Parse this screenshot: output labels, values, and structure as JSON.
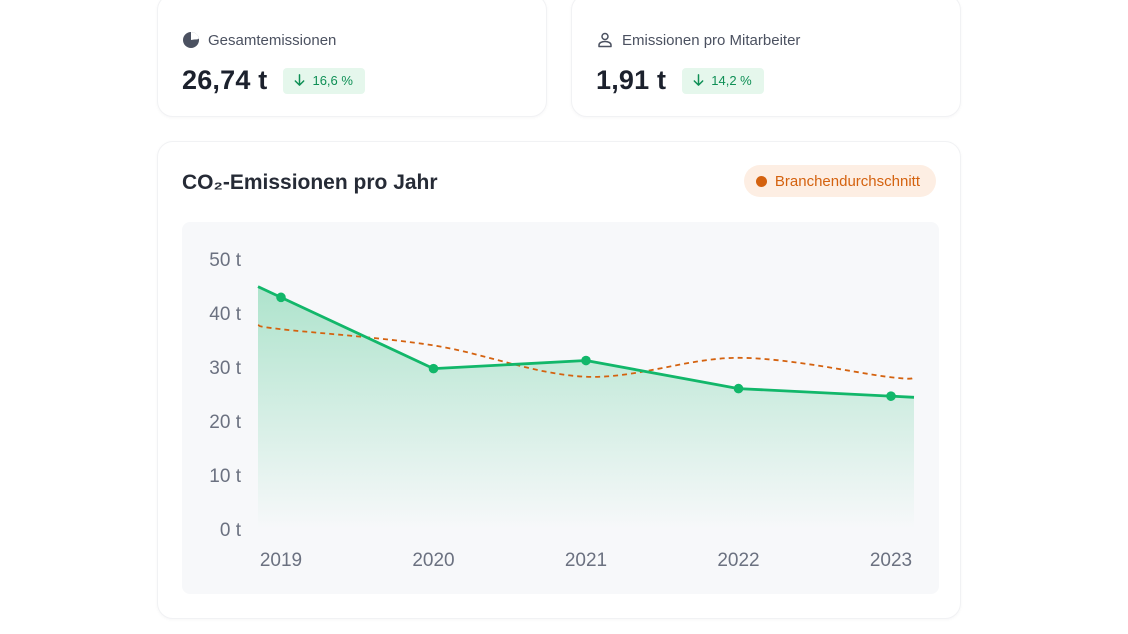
{
  "kpis": {
    "total": {
      "label": "Gesamtemissionen",
      "value": "26,74 t",
      "delta": "16,6 %",
      "icon": "pie-chart-icon"
    },
    "per_employee": {
      "label": "Emissionen pro Mitarbeiter",
      "value": "1,91 t",
      "delta": "14,2 %",
      "icon": "user-icon"
    }
  },
  "chart": {
    "title": "CO₂-Emissionen pro Jahr",
    "legend_label": "Branchendurchschnitt"
  },
  "colors": {
    "emissions": "#12b76a",
    "industry_average": "#d4620f",
    "delta_positive": "#0e8f55"
  },
  "chart_data": {
    "type": "area",
    "x": [
      "2019",
      "2020",
      "2021",
      "2022",
      "2023"
    ],
    "ylim": [
      0,
      50
    ],
    "y_ticks": [
      "50 t",
      "40 t",
      "30 t",
      "20 t",
      "10 t",
      "0 t"
    ],
    "grid": false,
    "legend_position": "top-right",
    "series": [
      {
        "values": [
          42.9,
          29.7,
          31.2,
          26.0,
          24.6
        ],
        "style": "solid-area"
      },
      {
        "name": "Branchendurchschnitt",
        "values": [
          37.0,
          34.0,
          28.2,
          31.7,
          28.1
        ],
        "style": "dashed"
      }
    ]
  }
}
